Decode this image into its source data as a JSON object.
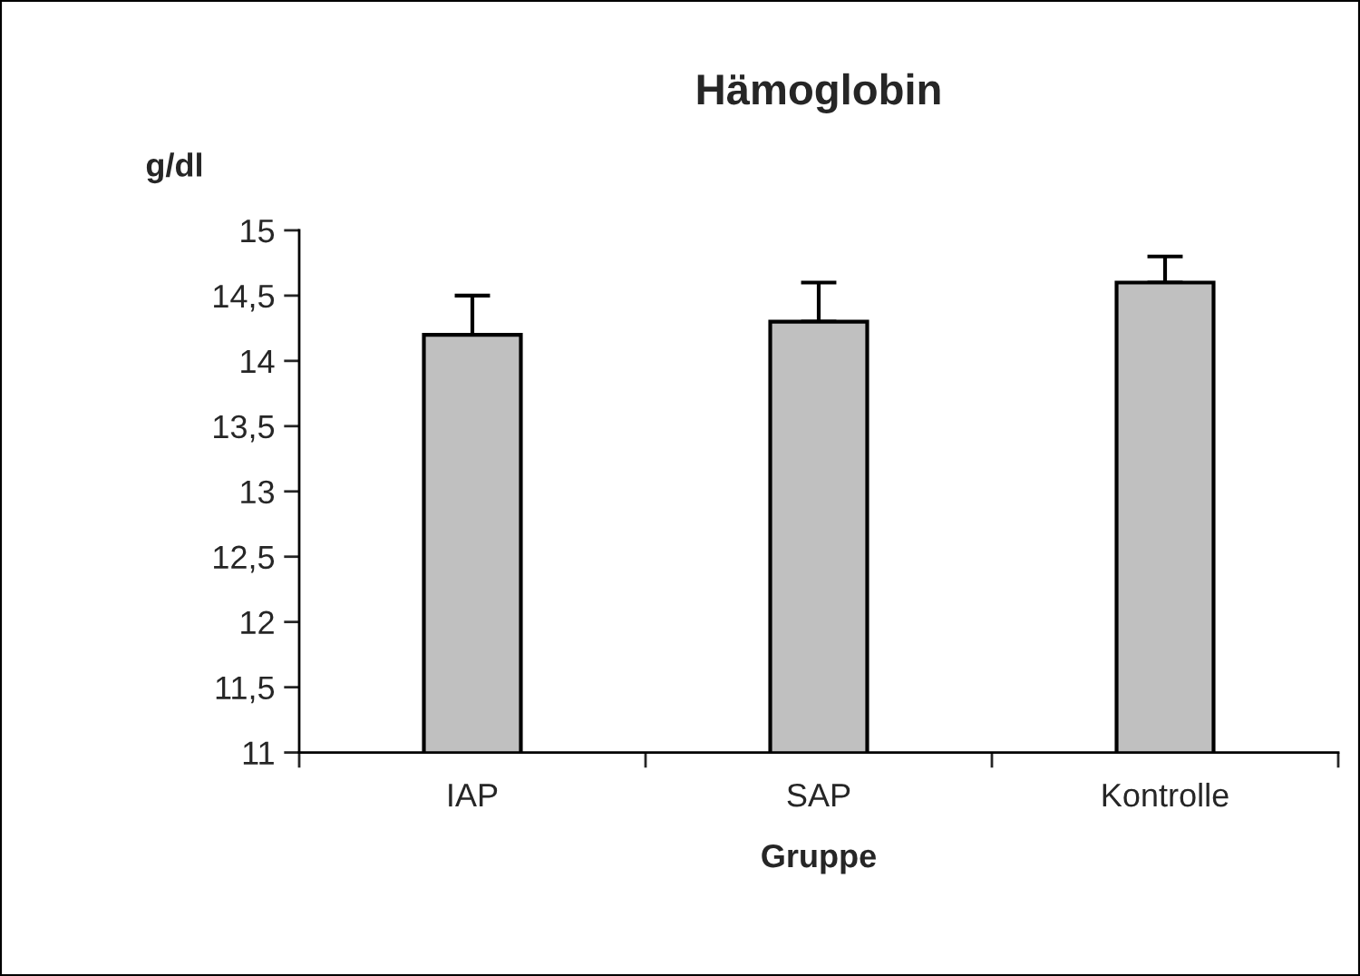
{
  "chart_data": {
    "type": "bar",
    "title": "Hämoglobin",
    "xlabel": "Gruppe",
    "ylabel": "g/dl",
    "categories": [
      "IAP",
      "SAP",
      "Kontrolle"
    ],
    "values": [
      14.2,
      14.3,
      14.6
    ],
    "errors": [
      [
        14.2,
        14.5
      ],
      [
        14.3,
        14.6
      ],
      [
        14.6,
        14.8
      ]
    ],
    "color": "#c0c0c0",
    "ylim": [
      11,
      15
    ],
    "yticks": [
      11,
      {
        "value": 11.5,
        "label": "11,5"
      },
      12,
      {
        "value": 12.5,
        "label": "12,5"
      },
      13,
      {
        "value": 13.5,
        "label": "13,5"
      },
      14,
      {
        "value": 14.5,
        "label": "14,5"
      },
      15
    ],
    "grid": false
  }
}
